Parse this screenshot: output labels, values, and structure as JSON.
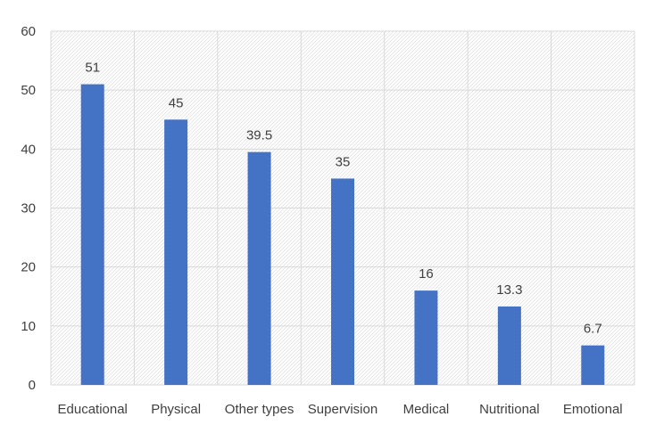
{
  "chart_data": {
    "type": "bar",
    "title": "",
    "xlabel": "",
    "ylabel": "",
    "categories": [
      "Educational",
      "Physical",
      "Other types",
      "Supervision",
      "Medical",
      "Nutritional",
      "Emotional"
    ],
    "values": [
      51,
      45,
      39.5,
      35,
      16,
      13.3,
      6.7
    ],
    "data_labels": [
      "51",
      "45",
      "39.5",
      "35",
      "16",
      "13.3",
      "6.7"
    ],
    "ylim": [
      0,
      60
    ],
    "yticks": [
      0,
      10,
      20,
      30,
      40,
      50,
      60
    ],
    "grid": true,
    "legend": "none",
    "colors": {
      "bar": "#4472C4",
      "grid": "#D9D9D9",
      "text": "#404040",
      "hatch": "#E3E3E3"
    }
  }
}
